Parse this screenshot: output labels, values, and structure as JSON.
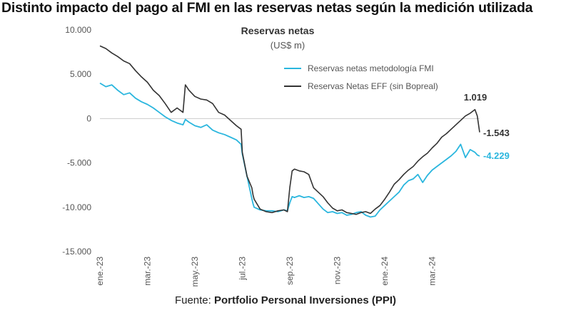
{
  "headline": "Distinto impacto del pago al FMI en las reservas netas según la medición utilizada",
  "source": {
    "prefix": "Fuente: ",
    "name": "Portfolio Personal Inversiones (PPI)"
  },
  "chart_data": {
    "type": "line",
    "title": "Reservas netas",
    "subtitle": "(US$ m)",
    "xlabel": "",
    "ylabel": "",
    "ylim": [
      -15000,
      10000
    ],
    "yticks": [
      10000,
      5000,
      0,
      -5000,
      -10000,
      -15000
    ],
    "ytick_labels": [
      "10.000",
      "5.000",
      "0",
      "-5.000",
      "-10.000",
      "-15.000"
    ],
    "xticks": [
      0,
      2,
      4,
      6,
      8,
      10,
      12,
      14
    ],
    "xtick_labels": [
      "ene.-23",
      "mar.-23",
      "may.-23",
      "jul.-23",
      "sep.-23",
      "nov.-23",
      "ene.-24",
      "mar.-24"
    ],
    "x_unit": "months since ene.-23",
    "legend_position": "top-right",
    "colors": {
      "fmi": "#2ab6de",
      "eff": "#333333",
      "axis": "#cccccc",
      "tick": "#555555"
    },
    "series": [
      {
        "name": "Reservas netas metodología FMI",
        "key": "fmi",
        "end_label": "-4.229",
        "x": [
          0.0,
          0.25,
          0.5,
          0.75,
          1.0,
          1.25,
          1.5,
          1.75,
          2.0,
          2.25,
          2.5,
          2.75,
          3.0,
          3.25,
          3.5,
          3.6,
          3.75,
          4.0,
          4.25,
          4.5,
          4.75,
          5.0,
          5.25,
          5.5,
          5.75,
          5.95,
          6.0,
          6.2,
          6.4,
          6.45,
          6.5,
          6.75,
          7.0,
          7.25,
          7.5,
          7.75,
          7.9,
          8.0,
          8.1,
          8.2,
          8.4,
          8.6,
          8.8,
          9.0,
          9.2,
          9.4,
          9.6,
          9.8,
          10.0,
          10.2,
          10.4,
          10.6,
          10.8,
          11.0,
          11.2,
          11.4,
          11.6,
          11.8,
          12.0,
          12.2,
          12.4,
          12.6,
          12.8,
          13.0,
          13.2,
          13.4,
          13.6,
          13.8,
          14.0,
          14.2,
          14.4,
          14.6,
          14.8,
          15.0,
          15.2,
          15.4,
          15.6,
          15.8,
          15.9,
          16.0
        ],
        "values": [
          4000,
          3600,
          3800,
          3200,
          2700,
          2900,
          2300,
          1900,
          1600,
          1200,
          700,
          200,
          -200,
          -500,
          -700,
          -100,
          -400,
          -800,
          -1000,
          -700,
          -1300,
          -1600,
          -1800,
          -2100,
          -2400,
          -2900,
          -4000,
          -6500,
          -9000,
          -9600,
          -10000,
          -10300,
          -10400,
          -10400,
          -10500,
          -10300,
          -10400,
          -9500,
          -8800,
          -8900,
          -8700,
          -8900,
          -8800,
          -9000,
          -9600,
          -10200,
          -10600,
          -10500,
          -10700,
          -10600,
          -10900,
          -10800,
          -10600,
          -10500,
          -10900,
          -11100,
          -11000,
          -10300,
          -9800,
          -9300,
          -8800,
          -8300,
          -7500,
          -7000,
          -6800,
          -6300,
          -7200,
          -6400,
          -5800,
          -5400,
          -5000,
          -4600,
          -4200,
          -3700,
          -2900,
          -4400,
          -3500,
          -3800,
          -4100,
          -4229
        ]
      },
      {
        "name": "Reservas Netas EFF (sin Bopreal)",
        "key": "eff",
        "end_label": "-1.543",
        "peak_label": "1.019",
        "peak_x": 15.8,
        "peak_value": 1019,
        "x": [
          0.0,
          0.25,
          0.5,
          0.75,
          1.0,
          1.25,
          1.5,
          1.75,
          2.0,
          2.25,
          2.5,
          2.75,
          3.0,
          3.25,
          3.5,
          3.6,
          3.75,
          4.0,
          4.25,
          4.5,
          4.75,
          5.0,
          5.25,
          5.5,
          5.75,
          5.95,
          6.0,
          6.2,
          6.4,
          6.45,
          6.5,
          6.75,
          7.0,
          7.25,
          7.5,
          7.75,
          7.9,
          8.0,
          8.1,
          8.2,
          8.4,
          8.6,
          8.8,
          9.0,
          9.2,
          9.4,
          9.6,
          9.8,
          10.0,
          10.2,
          10.4,
          10.6,
          10.8,
          11.0,
          11.2,
          11.4,
          11.6,
          11.8,
          12.0,
          12.2,
          12.4,
          12.6,
          12.8,
          13.0,
          13.2,
          13.4,
          13.6,
          13.8,
          14.0,
          14.2,
          14.4,
          14.6,
          14.8,
          15.0,
          15.2,
          15.4,
          15.6,
          15.8,
          15.9,
          16.0
        ],
        "values": [
          8200,
          7900,
          7400,
          7000,
          6500,
          6200,
          5400,
          4700,
          4100,
          3200,
          2600,
          1700,
          700,
          1200,
          700,
          3800,
          3200,
          2500,
          2200,
          2100,
          1700,
          700,
          400,
          -200,
          -800,
          -1200,
          -3800,
          -6500,
          -7800,
          -8600,
          -9100,
          -10200,
          -10500,
          -10600,
          -10400,
          -10300,
          -10500,
          -7800,
          -5900,
          -5700,
          -5900,
          -6000,
          -6300,
          -7800,
          -8300,
          -8800,
          -9500,
          -10100,
          -10400,
          -10300,
          -10600,
          -10700,
          -10800,
          -10600,
          -10500,
          -10700,
          -10200,
          -9800,
          -9100,
          -8300,
          -7400,
          -6900,
          -6300,
          -5800,
          -5400,
          -4800,
          -4300,
          -3900,
          -3300,
          -2800,
          -2100,
          -1700,
          -1200,
          -700,
          -200,
          300,
          600,
          1019,
          300,
          -1543
        ]
      }
    ]
  }
}
